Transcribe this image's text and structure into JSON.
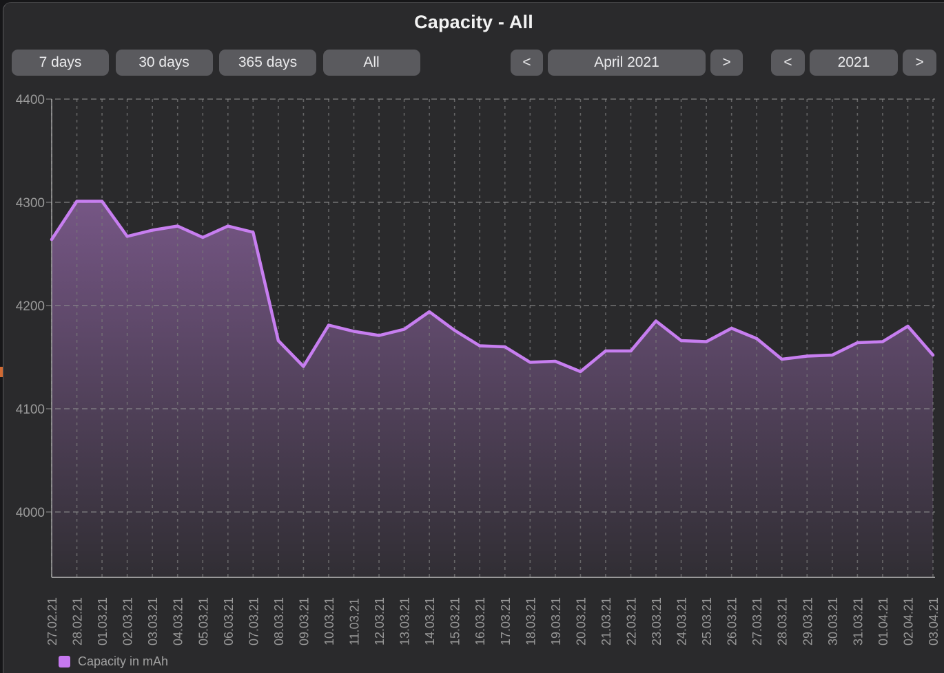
{
  "window": {
    "title": "Capacity - All"
  },
  "toolbar": {
    "range_buttons": [
      {
        "label": "7 days"
      },
      {
        "label": "30 days"
      },
      {
        "label": "365 days"
      },
      {
        "label": "All"
      }
    ],
    "month_nav": {
      "prev": "<",
      "label": "April 2021",
      "next": ">"
    },
    "year_nav": {
      "prev": "<",
      "label": "2021",
      "next": ">"
    }
  },
  "legend": {
    "label": "Capacity in mAh",
    "color": "#c678f0"
  },
  "theme": {
    "window_bg": "#2a2a2c",
    "button_bg": "#5a5a5e",
    "line_color": "#c77ef0",
    "fill_color": "#ac76c5",
    "grid_color_h": "#909090",
    "grid_color_v": "#787878",
    "axis_color": "#a9a9a9",
    "tick_text_color": "#9b9b9b"
  },
  "chart_data": {
    "type": "area",
    "title": "Capacity - All",
    "xlabel": "",
    "ylabel": "",
    "x": [
      "27.02.21",
      "28.02.21",
      "01.03.21",
      "02.03.21",
      "03.03.21",
      "04.03.21",
      "05.03.21",
      "06.03.21",
      "07.03.21",
      "08.03.21",
      "09.03.21",
      "10.03.21",
      "11.03.21",
      "12.03.21",
      "13.03.21",
      "14.03.21",
      "15.03.21",
      "16.03.21",
      "17.03.21",
      "18.03.21",
      "19.03.21",
      "20.03.21",
      "21.03.21",
      "22.03.21",
      "23.03.21",
      "24.03.21",
      "25.03.21",
      "26.03.21",
      "27.03.21",
      "28.03.21",
      "29.03.21",
      "30.03.21",
      "31.03.21",
      "01.04.21",
      "02.04.21",
      "03.04.21"
    ],
    "series": [
      {
        "name": "Capacity in mAh",
        "values": [
          4264,
          4301,
          4301,
          4267,
          4273,
          4277,
          4266,
          4277,
          4271,
          4166,
          4141,
          4181,
          4175,
          4171,
          4177,
          4194,
          4176,
          4161,
          4160,
          4145,
          4146,
          4136,
          4156,
          4156,
          4185,
          4166,
          4165,
          4178,
          4168,
          4148,
          4151,
          4152,
          4164,
          4165,
          4180,
          4152
        ]
      }
    ],
    "yticks": [
      4400,
      4300,
      4200,
      4100,
      4000
    ],
    "ylim": [
      3937,
      4400
    ],
    "grid": true,
    "legend_position": "bottom-left"
  }
}
